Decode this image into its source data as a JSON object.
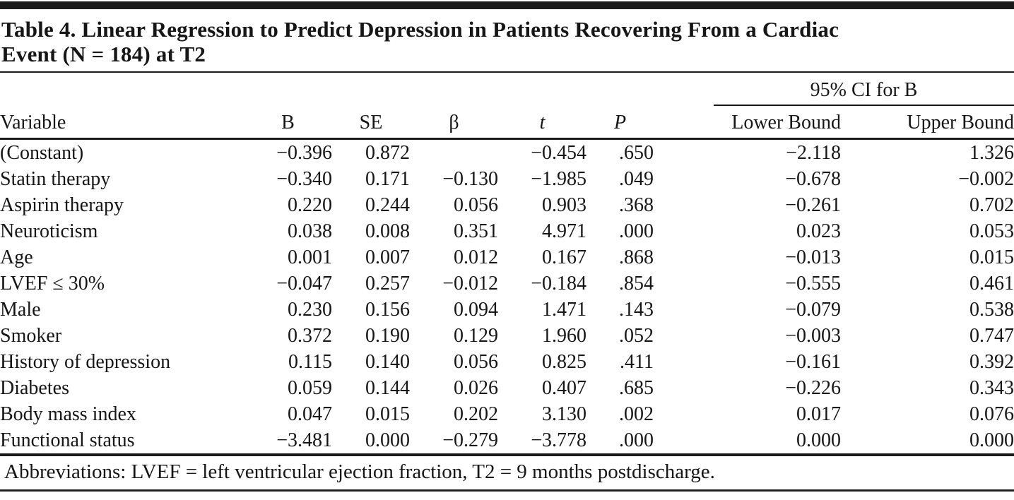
{
  "page": {
    "title_line1": "Table 4. Linear Regression to Predict Depression in Patients Recovering From a Cardiac",
    "title_line2": "Event (N = 184) at T2"
  },
  "table": {
    "spanner_label": "95% CI for B",
    "columns": [
      "Variable",
      "B",
      "SE",
      "β",
      "t",
      "P",
      "Lower Bound",
      "Upper Bound"
    ],
    "rows": [
      {
        "cells": [
          "(Constant)",
          "−0.396",
          "0.872",
          "",
          "−0.454",
          ".650",
          "−2.118",
          "1.326"
        ]
      },
      {
        "cells": [
          "Statin therapy",
          "−0.340",
          "0.171",
          "−0.130",
          "−1.985",
          ".049",
          "−0.678",
          "−0.002"
        ]
      },
      {
        "cells": [
          "Aspirin therapy",
          "0.220",
          "0.244",
          "0.056",
          "0.903",
          ".368",
          "−0.261",
          "0.702"
        ]
      },
      {
        "cells": [
          "Neuroticism",
          "0.038",
          "0.008",
          "0.351",
          "4.971",
          ".000",
          "0.023",
          "0.053"
        ]
      },
      {
        "cells": [
          "Age",
          "0.001",
          "0.007",
          "0.012",
          "0.167",
          ".868",
          "−0.013",
          "0.015"
        ]
      },
      {
        "cells": [
          "LVEF ≤ 30%",
          "−0.047",
          "0.257",
          "−0.012",
          "−0.184",
          ".854",
          "−0.555",
          "0.461"
        ]
      },
      {
        "cells": [
          "Male",
          "0.230",
          "0.156",
          "0.094",
          "1.471",
          ".143",
          "−0.079",
          "0.538"
        ]
      },
      {
        "cells": [
          "Smoker",
          "0.372",
          "0.190",
          "0.129",
          "1.960",
          ".052",
          "−0.003",
          "0.747"
        ]
      },
      {
        "cells": [
          "History of depression",
          "0.115",
          "0.140",
          "0.056",
          "0.825",
          ".411",
          "−0.161",
          "0.392"
        ]
      },
      {
        "cells": [
          "Diabetes",
          "0.059",
          "0.144",
          "0.026",
          "0.407",
          ".685",
          "−0.226",
          "0.343"
        ]
      },
      {
        "cells": [
          "Body mass index",
          "0.047",
          "0.015",
          "0.202",
          "3.130",
          ".002",
          "0.017",
          "0.076"
        ]
      },
      {
        "cells": [
          "Functional status",
          "−3.481",
          "0.000",
          "−0.279",
          "−3.778",
          ".000",
          "0.000",
          "0.000"
        ]
      }
    ]
  },
  "footnote": "Abbreviations: LVEF = left ventricular ejection fraction, T2 = 9 months postdischarge."
}
